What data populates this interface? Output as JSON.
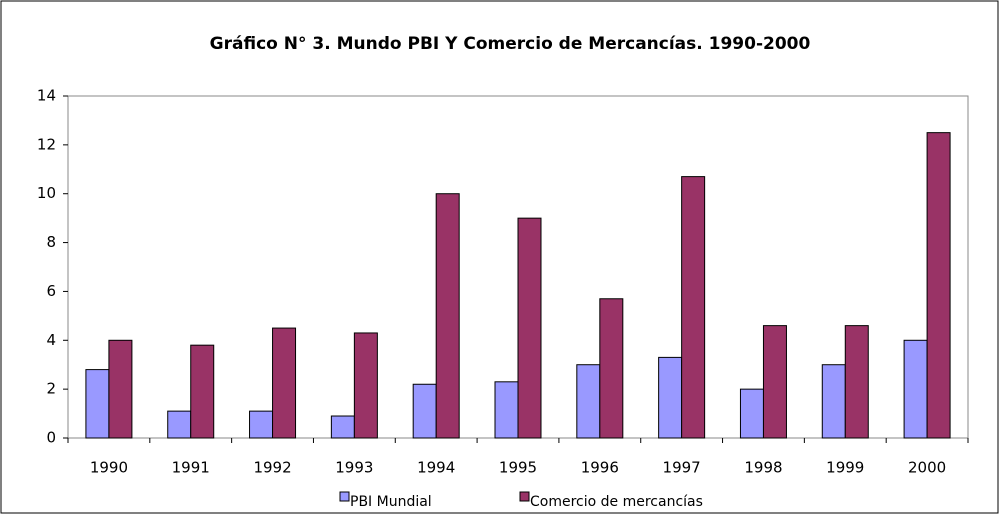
{
  "chart_data": {
    "type": "bar",
    "title": "Gráfico N° 3. Mundo PBI Y Comercio de Mercancías. 1990-2000",
    "categories": [
      "1990",
      "1991",
      "1992",
      "1993",
      "1994",
      "1995",
      "1996",
      "1997",
      "1998",
      "1999",
      "2000"
    ],
    "series": [
      {
        "name": "PBI Mundial",
        "color": "#9999ff",
        "values": [
          2.8,
          1.1,
          1.1,
          0.9,
          2.2,
          2.3,
          3.0,
          3.3,
          2.0,
          3.0,
          4.0
        ]
      },
      {
        "name": "Comercio de mercancías",
        "color": "#993366",
        "values": [
          4.0,
          3.8,
          4.5,
          4.3,
          10.0,
          9.0,
          5.7,
          10.7,
          4.6,
          4.6,
          12.5
        ]
      }
    ],
    "ylim": [
      0,
      14
    ],
    "yticks": [
      0,
      2,
      4,
      6,
      8,
      10,
      12,
      14
    ],
    "grid": false,
    "legend": "bottom"
  }
}
